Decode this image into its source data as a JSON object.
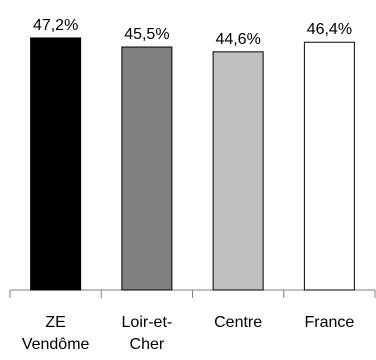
{
  "chart_data": {
    "type": "bar",
    "categories": [
      "ZE Vendôme",
      "Loir-et-Cher",
      "Centre",
      "France"
    ],
    "values": [
      47.2,
      45.5,
      44.6,
      46.4
    ],
    "value_labels": [
      "47,2%",
      "45,5%",
      "44,6%",
      "46,4%"
    ],
    "colors": [
      "#000000",
      "#808080",
      "#c0c0c0",
      "#ffffff"
    ],
    "ylim": [
      0,
      50
    ]
  }
}
